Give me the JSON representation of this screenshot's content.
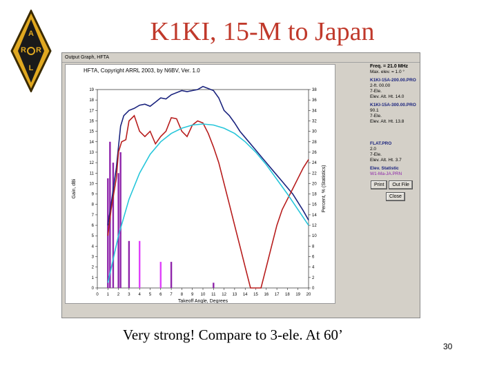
{
  "slide": {
    "title": "K1KI, 15-M to Japan",
    "caption": "Very strong! Compare to 3-ele. At 60’",
    "page_number": "30",
    "logo_text": "ARRL"
  },
  "window": {
    "title": "Output Graph, HFTA",
    "plot_header": "HFTA, Copyright ARRL 2003, by N6BV, Ver. 1.0"
  },
  "sidebar": {
    "freq": "Freq. = 21.0 MHz",
    "max_elev": "Max. elev. = 1.0 °",
    "file1": "K1KI-15A-200.00.PRO",
    "file1_meta": [
      "2-ft. 00.00",
      "7-Ele.",
      "Elev. Alt. Ht. 14.0"
    ],
    "file2": "K1KI-15A-300.00.PRO",
    "file2_meta": [
      "90.1",
      "7-Ele.",
      "Elev. Alt. Ht. 13.8"
    ],
    "file3": "FLAT.PRO",
    "file3_meta": [
      "2.0",
      "7-Ele.",
      "Elev. Alt. Ht. 3.7"
    ],
    "elev_stats": "Elev. Statistic",
    "file4": "W1-Ma-JA.PRN",
    "btn_print": "Print",
    "btn_out": "Out File",
    "btn_close": "Close"
  },
  "chart_data": {
    "type": "line",
    "x_ticks": [
      0,
      1,
      2,
      3,
      4,
      5,
      6,
      7,
      8,
      9,
      10,
      11,
      12,
      13,
      14,
      15,
      16,
      17,
      18,
      19,
      20
    ],
    "xlabel": "Takeoff Angle, Degrees",
    "ylabel_left": "Gain, dBi",
    "ylabel_right": "Percent, % (Statistics)",
    "y_ticks_left": [
      0,
      1,
      2,
      3,
      4,
      5,
      6,
      7,
      8,
      9,
      10,
      11,
      12,
      13,
      14,
      15,
      16,
      17,
      18,
      19
    ],
    "y_ticks_right": [
      0,
      2,
      4,
      6,
      8,
      10,
      12,
      14,
      16,
      18,
      20,
      22,
      24,
      26,
      28,
      30,
      32,
      34,
      36,
      38
    ],
    "ylim_left": [
      0,
      19
    ],
    "ylim_right": [
      0,
      38
    ],
    "xlim": [
      0,
      20
    ],
    "grid": false,
    "series": [
      {
        "name": "K1KI-15A-200.00.PRO",
        "color": "#1a237e",
        "x": [
          1.0,
          1.3,
          1.8,
          2.0,
          2.2,
          2.5,
          3.0,
          3.5,
          4.0,
          4.5,
          5.0,
          5.5,
          6.0,
          6.5,
          7.0,
          7.5,
          8.0,
          8.5,
          9.0,
          9.5,
          10.0,
          10.5,
          11.0,
          11.5,
          12.0,
          12.5,
          13.0,
          13.5,
          14.0,
          14.5,
          15.0,
          15.5,
          16.0,
          16.5,
          17.0,
          17.5,
          18.0,
          18.5,
          19.0,
          19.5,
          20.0
        ],
        "y": [
          6.0,
          8.0,
          11.5,
          13.5,
          15.5,
          16.5,
          17.0,
          17.2,
          17.5,
          17.6,
          17.4,
          17.8,
          18.2,
          18.1,
          18.5,
          18.7,
          18.9,
          18.8,
          18.9,
          19.0,
          19.3,
          19.1,
          18.9,
          18.2,
          17.0,
          16.5,
          15.8,
          15.0,
          14.4,
          13.8,
          13.2,
          12.6,
          12.0,
          11.4,
          10.8,
          10.2,
          9.6,
          9.0,
          8.2,
          7.4,
          6.5
        ]
      },
      {
        "name": "K1KI-15A-300.00.PRO",
        "color": "#b71c1c",
        "x": [
          1.0,
          1.3,
          1.8,
          2.0,
          2.3,
          2.7,
          3.0,
          3.5,
          4.0,
          4.5,
          5.0,
          5.5,
          6.0,
          6.5,
          7.0,
          7.5,
          8.0,
          8.5,
          9.0,
          9.5,
          10.0,
          10.5,
          11.0,
          11.5,
          12.0,
          12.5,
          13.0,
          13.5,
          14.0,
          14.5,
          15.0,
          15.5,
          16.0,
          16.5,
          17.0,
          17.5,
          18.0,
          18.5,
          19.0,
          19.5,
          20.0
        ],
        "y": [
          5.0,
          7.5,
          10.5,
          13.0,
          14.0,
          14.2,
          16.0,
          16.5,
          15.0,
          14.5,
          15.0,
          13.8,
          14.5,
          15.0,
          16.3,
          16.2,
          15.0,
          14.5,
          15.6,
          16.0,
          15.8,
          14.8,
          13.5,
          12.0,
          10.0,
          8.0,
          6.0,
          4.0,
          2.0,
          0.0,
          0.0,
          0.0,
          2.0,
          4.0,
          6.0,
          7.5,
          8.5,
          9.5,
          10.5,
          11.5,
          12.3
        ]
      },
      {
        "name": "FLAT.PRO",
        "color": "#26c6da",
        "x": [
          1.0,
          2.0,
          3.0,
          4.0,
          5.0,
          6.0,
          7.0,
          8.0,
          9.0,
          10.0,
          11.0,
          12.0,
          13.0,
          14.0,
          15.0,
          16.0,
          17.0,
          18.0,
          19.0,
          20.0
        ],
        "y": [
          0.5,
          5.0,
          8.5,
          11.0,
          12.8,
          14.0,
          14.8,
          15.3,
          15.6,
          15.7,
          15.6,
          15.3,
          14.8,
          14.0,
          13.0,
          11.8,
          10.4,
          9.0,
          7.5,
          6.0
        ]
      }
    ],
    "bars": {
      "name": "W1-Ma-JA.PRN",
      "unit": "percent",
      "items": [
        {
          "x": 1.0,
          "value": 21,
          "color": "#8e24aa"
        },
        {
          "x": 1.2,
          "value": 28,
          "color": "#8e24aa"
        },
        {
          "x": 1.5,
          "value": 24,
          "color": "#8e24aa"
        },
        {
          "x": 2.0,
          "value": 22,
          "color": "#8e24aa"
        },
        {
          "x": 2.2,
          "value": 26,
          "color": "#8e24aa"
        },
        {
          "x": 3.0,
          "value": 9,
          "color": "#8e24aa"
        },
        {
          "x": 4.0,
          "value": 9,
          "color": "#e040fb"
        },
        {
          "x": 6.0,
          "value": 5,
          "color": "#e040fb"
        },
        {
          "x": 7.0,
          "value": 5,
          "color": "#8e24aa"
        },
        {
          "x": 11.0,
          "value": 1,
          "color": "#8e24aa"
        }
      ]
    }
  }
}
